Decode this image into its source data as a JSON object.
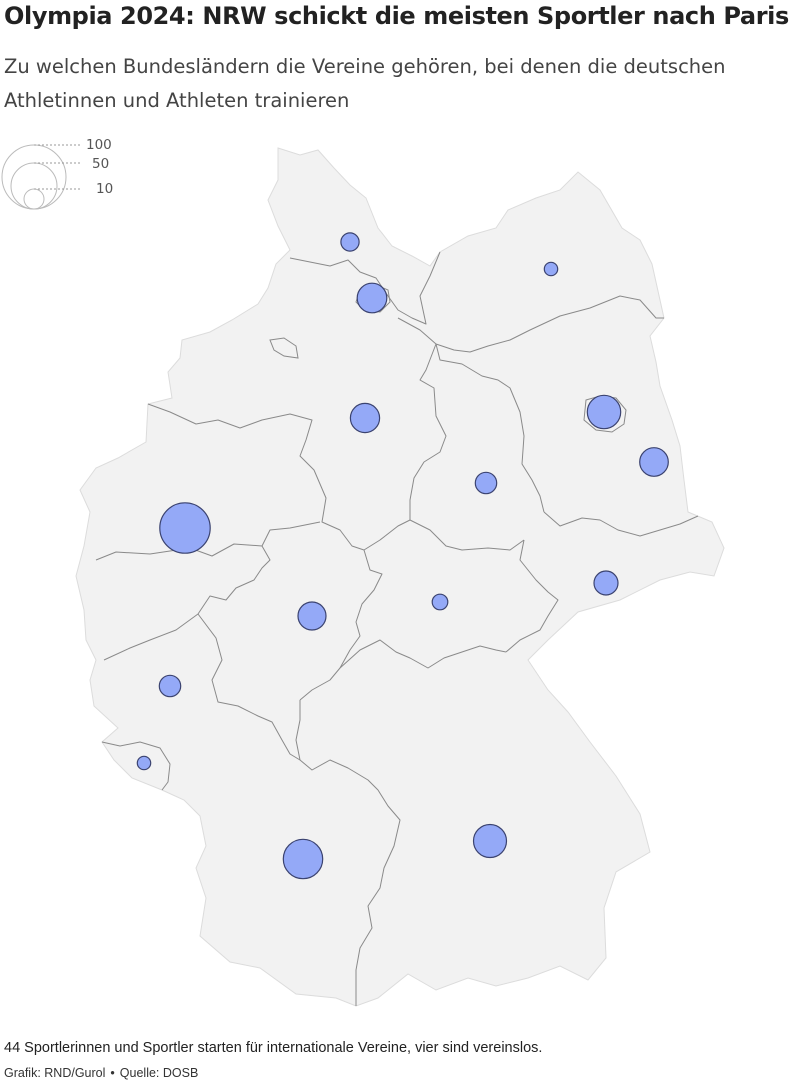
{
  "title": "Olympia 2024: NRW schickt die meisten Sportler nach Paris",
  "subtitle": "Zu welchen Bundesländern die Vereine gehören, bei denen die deutschen Athletinnen und Athleten trainieren",
  "legend": {
    "values": [
      "100",
      "50",
      "10"
    ]
  },
  "states": [
    {
      "id": "schleswig-holstein",
      "athletes": 11
    },
    {
      "id": "hamburg",
      "athletes": 29
    },
    {
      "id": "mecklenburg-vorpommern",
      "athletes": 6
    },
    {
      "id": "brandenburg",
      "athletes": 27
    },
    {
      "id": "berlin",
      "athletes": 37
    },
    {
      "id": "niedersachsen",
      "athletes": 28
    },
    {
      "id": "sachsen-anhalt",
      "athletes": 15
    },
    {
      "id": "nordrhein-westfalen",
      "athletes": 84
    },
    {
      "id": "sachsen",
      "athletes": 19
    },
    {
      "id": "thueringen",
      "athletes": 8
    },
    {
      "id": "hessen",
      "athletes": 26
    },
    {
      "id": "rheinland-pfalz",
      "athletes": 15
    },
    {
      "id": "saarland",
      "athletes": 6
    },
    {
      "id": "baden-wuerttemberg",
      "athletes": 51
    },
    {
      "id": "bayern",
      "athletes": 36
    }
  ],
  "colors": {
    "bubble_fill": "#94a9f7",
    "bubble_stroke": "#3b4370",
    "land": "#f2f2f2",
    "borders": "#8a8a8a"
  },
  "footnote": "44 Sportlerinnen und Sportler starten für internationale Vereine, vier sind vereinslos.",
  "credit": {
    "graphic": "Grafik: RND/Gurol",
    "separator": "•",
    "source": "Quelle: DOSB"
  }
}
